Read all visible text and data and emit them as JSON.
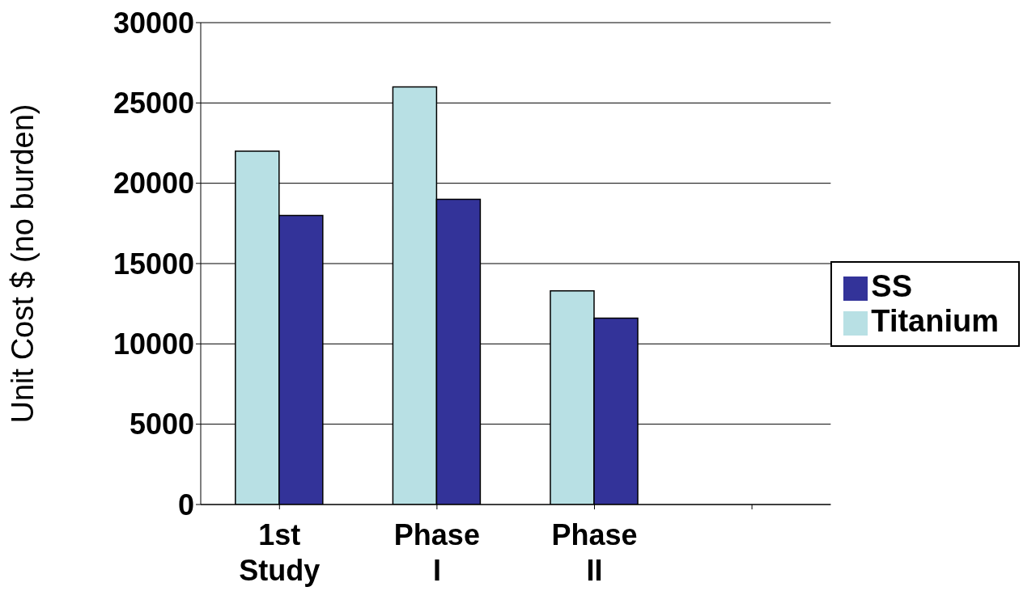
{
  "chart_data": {
    "type": "bar",
    "ylabel": "Unit Cost $ (no burden)",
    "categories": [
      "1st Study",
      "Phase I",
      "Phase II",
      null
    ],
    "series": [
      {
        "name": "Titanium",
        "color": "#b8e0e4",
        "values": [
          22000,
          26000,
          13300,
          null
        ]
      },
      {
        "name": "SS",
        "color": "#333399",
        "values": [
          18000,
          19000,
          11600,
          null
        ]
      }
    ],
    "ylim": [
      0,
      30000
    ],
    "yticks": [
      0,
      5000,
      10000,
      15000,
      20000,
      25000,
      30000
    ],
    "grid": "y",
    "legend": "right"
  }
}
